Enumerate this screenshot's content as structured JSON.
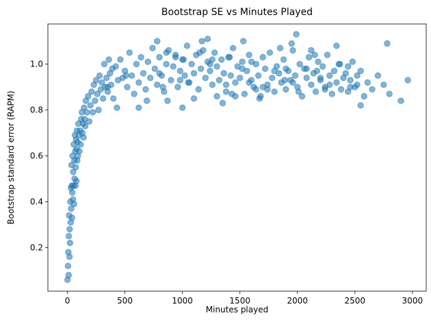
{
  "chart_data": {
    "type": "scatter",
    "title": "Bootstrap SE vs Minutes Played",
    "xlabel": "Minutes played",
    "ylabel": "Bootstrap standard error (RAPM)",
    "xlim": [
      -170,
      3120
    ],
    "ylim": [
      0.01,
      1.175
    ],
    "xticks": [
      0,
      500,
      1000,
      1500,
      2000,
      2500,
      3000
    ],
    "yticks": [
      0.2,
      0.4,
      0.6,
      0.8,
      1.0
    ],
    "xtick_labels": [
      "0",
      "500",
      "1000",
      "1500",
      "2000",
      "2500",
      "3000"
    ],
    "ytick_labels": [
      "0.2",
      "0.4",
      "0.6",
      "0.8",
      "1.0"
    ],
    "grid": false,
    "marker_color": "#1f77b4",
    "marker_alpha": 0.55,
    "points_x": [
      0,
      5,
      8,
      10,
      12,
      15,
      18,
      20,
      22,
      25,
      28,
      30,
      32,
      35,
      38,
      40,
      42,
      45,
      48,
      50,
      52,
      55,
      58,
      60,
      62,
      65,
      68,
      70,
      72,
      75,
      78,
      80,
      82,
      85,
      88,
      90,
      95,
      100,
      105,
      110,
      115,
      120,
      125,
      130,
      135,
      140,
      145,
      150,
      155,
      160,
      170,
      180,
      190,
      200,
      210,
      220,
      230,
      240,
      250,
      260,
      270,
      280,
      290,
      300,
      310,
      320,
      330,
      340,
      350,
      360,
      370,
      380,
      390,
      400,
      420,
      440,
      460,
      480,
      500,
      520,
      540,
      560,
      580,
      600,
      620,
      640,
      660,
      680,
      700,
      720,
      740,
      760,
      780,
      800,
      820,
      840,
      860,
      880,
      900,
      920,
      940,
      960,
      980,
      1000,
      1020,
      1040,
      1060,
      1080,
      1100,
      1120,
      1140,
      1160,
      1180,
      1200,
      1220,
      1240,
      1260,
      1280,
      1300,
      1320,
      1340,
      1360,
      1380,
      1400,
      1420,
      1440,
      1460,
      1480,
      1500,
      1520,
      1540,
      1560,
      1580,
      1600,
      1620,
      1640,
      1660,
      1680,
      1700,
      1720,
      1740,
      1760,
      1780,
      1800,
      1820,
      1840,
      1860,
      1880,
      1900,
      1920,
      1940,
      1960,
      1980,
      2000,
      2020,
      2040,
      2060,
      2080,
      2100,
      2120,
      2140,
      2160,
      2180,
      2200,
      2220,
      2240,
      2260,
      2280,
      2300,
      2320,
      2340,
      2360,
      2380,
      2400,
      2420,
      2440,
      2460,
      2480,
      2500,
      2520,
      2550,
      2580,
      2610,
      2650,
      2700,
      2750,
      2800,
      2900,
      2960,
      350,
      510,
      800,
      1000,
      1170,
      1950,
      1990,
      780,
      1220,
      1530,
      2780,
      2120,
      1850,
      860,
      1600,
      2340,
      2550,
      620,
      430,
      1350,
      690,
      1100,
      1460,
      1740,
      2010,
      2280,
      2460,
      980,
      1580,
      2200,
      1890,
      1300,
      870,
      1430,
      1670,
      2080,
      2370,
      1010,
      1240,
      1520,
      1800,
      2150,
      940,
      1150,
      1260,
      1410,
      1700,
      1960,
      2240,
      2520,
      830,
      1050,
      1380,
      1640,
      1900,
      2170,
      2440
    ],
    "points_y": [
      0.06,
      0.12,
      0.18,
      0.08,
      0.25,
      0.34,
      0.16,
      0.28,
      0.22,
      0.4,
      0.31,
      0.46,
      0.37,
      0.56,
      0.47,
      0.33,
      0.44,
      0.6,
      0.41,
      0.53,
      0.47,
      0.65,
      0.39,
      0.58,
      0.5,
      0.69,
      0.62,
      0.47,
      0.55,
      0.67,
      0.49,
      0.63,
      0.71,
      0.58,
      0.66,
      0.6,
      0.74,
      0.69,
      0.62,
      0.71,
      0.65,
      0.76,
      0.79,
      0.7,
      0.74,
      0.68,
      0.81,
      0.76,
      0.73,
      0.84,
      0.79,
      0.86,
      0.75,
      0.82,
      0.88,
      0.79,
      0.91,
      0.84,
      0.93,
      0.87,
      0.8,
      0.95,
      0.89,
      0.92,
      0.85,
      1.0,
      0.9,
      0.94,
      0.88,
      1.02,
      0.96,
      0.91,
      0.98,
      0.85,
      0.99,
      0.93,
      1.02,
      0.94,
      0.97,
      0.9,
      1.05,
      0.95,
      0.87,
      1.0,
      0.92,
      1.03,
      0.96,
      0.89,
      1.01,
      0.94,
      1.07,
      0.98,
      0.91,
      1.03,
      0.95,
      0.88,
      1.0,
      1.06,
      0.93,
      0.99,
      1.04,
      0.9,
      0.97,
      1.02,
      0.95,
      1.08,
      0.92,
      1.0,
      0.96,
      1.04,
      0.89,
      0.98,
      1.06,
      0.94,
      1.01,
      0.97,
      0.91,
      1.05,
      0.99,
      0.93,
      1.02,
      0.96,
      0.88,
      1.03,
      0.95,
      1.07,
      0.92,
      0.99,
      0.94,
      1.01,
      0.87,
      0.97,
      1.04,
      0.93,
      0.9,
      1.0,
      0.95,
      0.86,
      1.03,
      0.98,
      0.91,
      1.05,
      0.94,
      0.88,
      0.99,
      0.96,
      0.92,
      1.02,
      0.89,
      0.97,
      0.93,
      1.06,
      0.95,
      0.9,
      1.0,
      0.86,
      0.98,
      0.94,
      1.03,
      0.91,
      0.96,
      0.88,
      1.01,
      0.93,
      0.99,
      0.9,
      1.04,
      0.95,
      0.87,
      0.97,
      0.92,
      1.0,
      0.89,
      0.94,
      0.96,
      0.88,
      0.93,
      1.01,
      0.9,
      0.95,
      0.97,
      0.86,
      0.92,
      0.89,
      0.95,
      0.91,
      0.87,
      0.84,
      0.93,
      0.9,
      0.95,
      0.96,
      0.81,
      1.1,
      1.09,
      1.13,
      1.1,
      1.11,
      1.1,
      1.09,
      1.06,
      1.07,
      1.05,
      1.01,
      1.08,
      0.82,
      0.81,
      0.81,
      0.83,
      0.84,
      0.85,
      0.86,
      0.89,
      0.88,
      0.91,
      0.9,
      0.93,
      0.92,
      0.94,
      0.93,
      0.86,
      0.84,
      0.87,
      0.85,
      0.98,
      1.0,
      1.02,
      1.0,
      0.98,
      0.97,
      1.04,
      1.03,
      1.05,
      1.02,
      1.03,
      0.9,
      0.92,
      0.89,
      0.91,
      0.9,
      0.92,
      0.91,
      0.89,
      0.98,
      0.97,
      0.99,
      0.96,
      0.98,
      0.97,
      0.99
    ]
  }
}
